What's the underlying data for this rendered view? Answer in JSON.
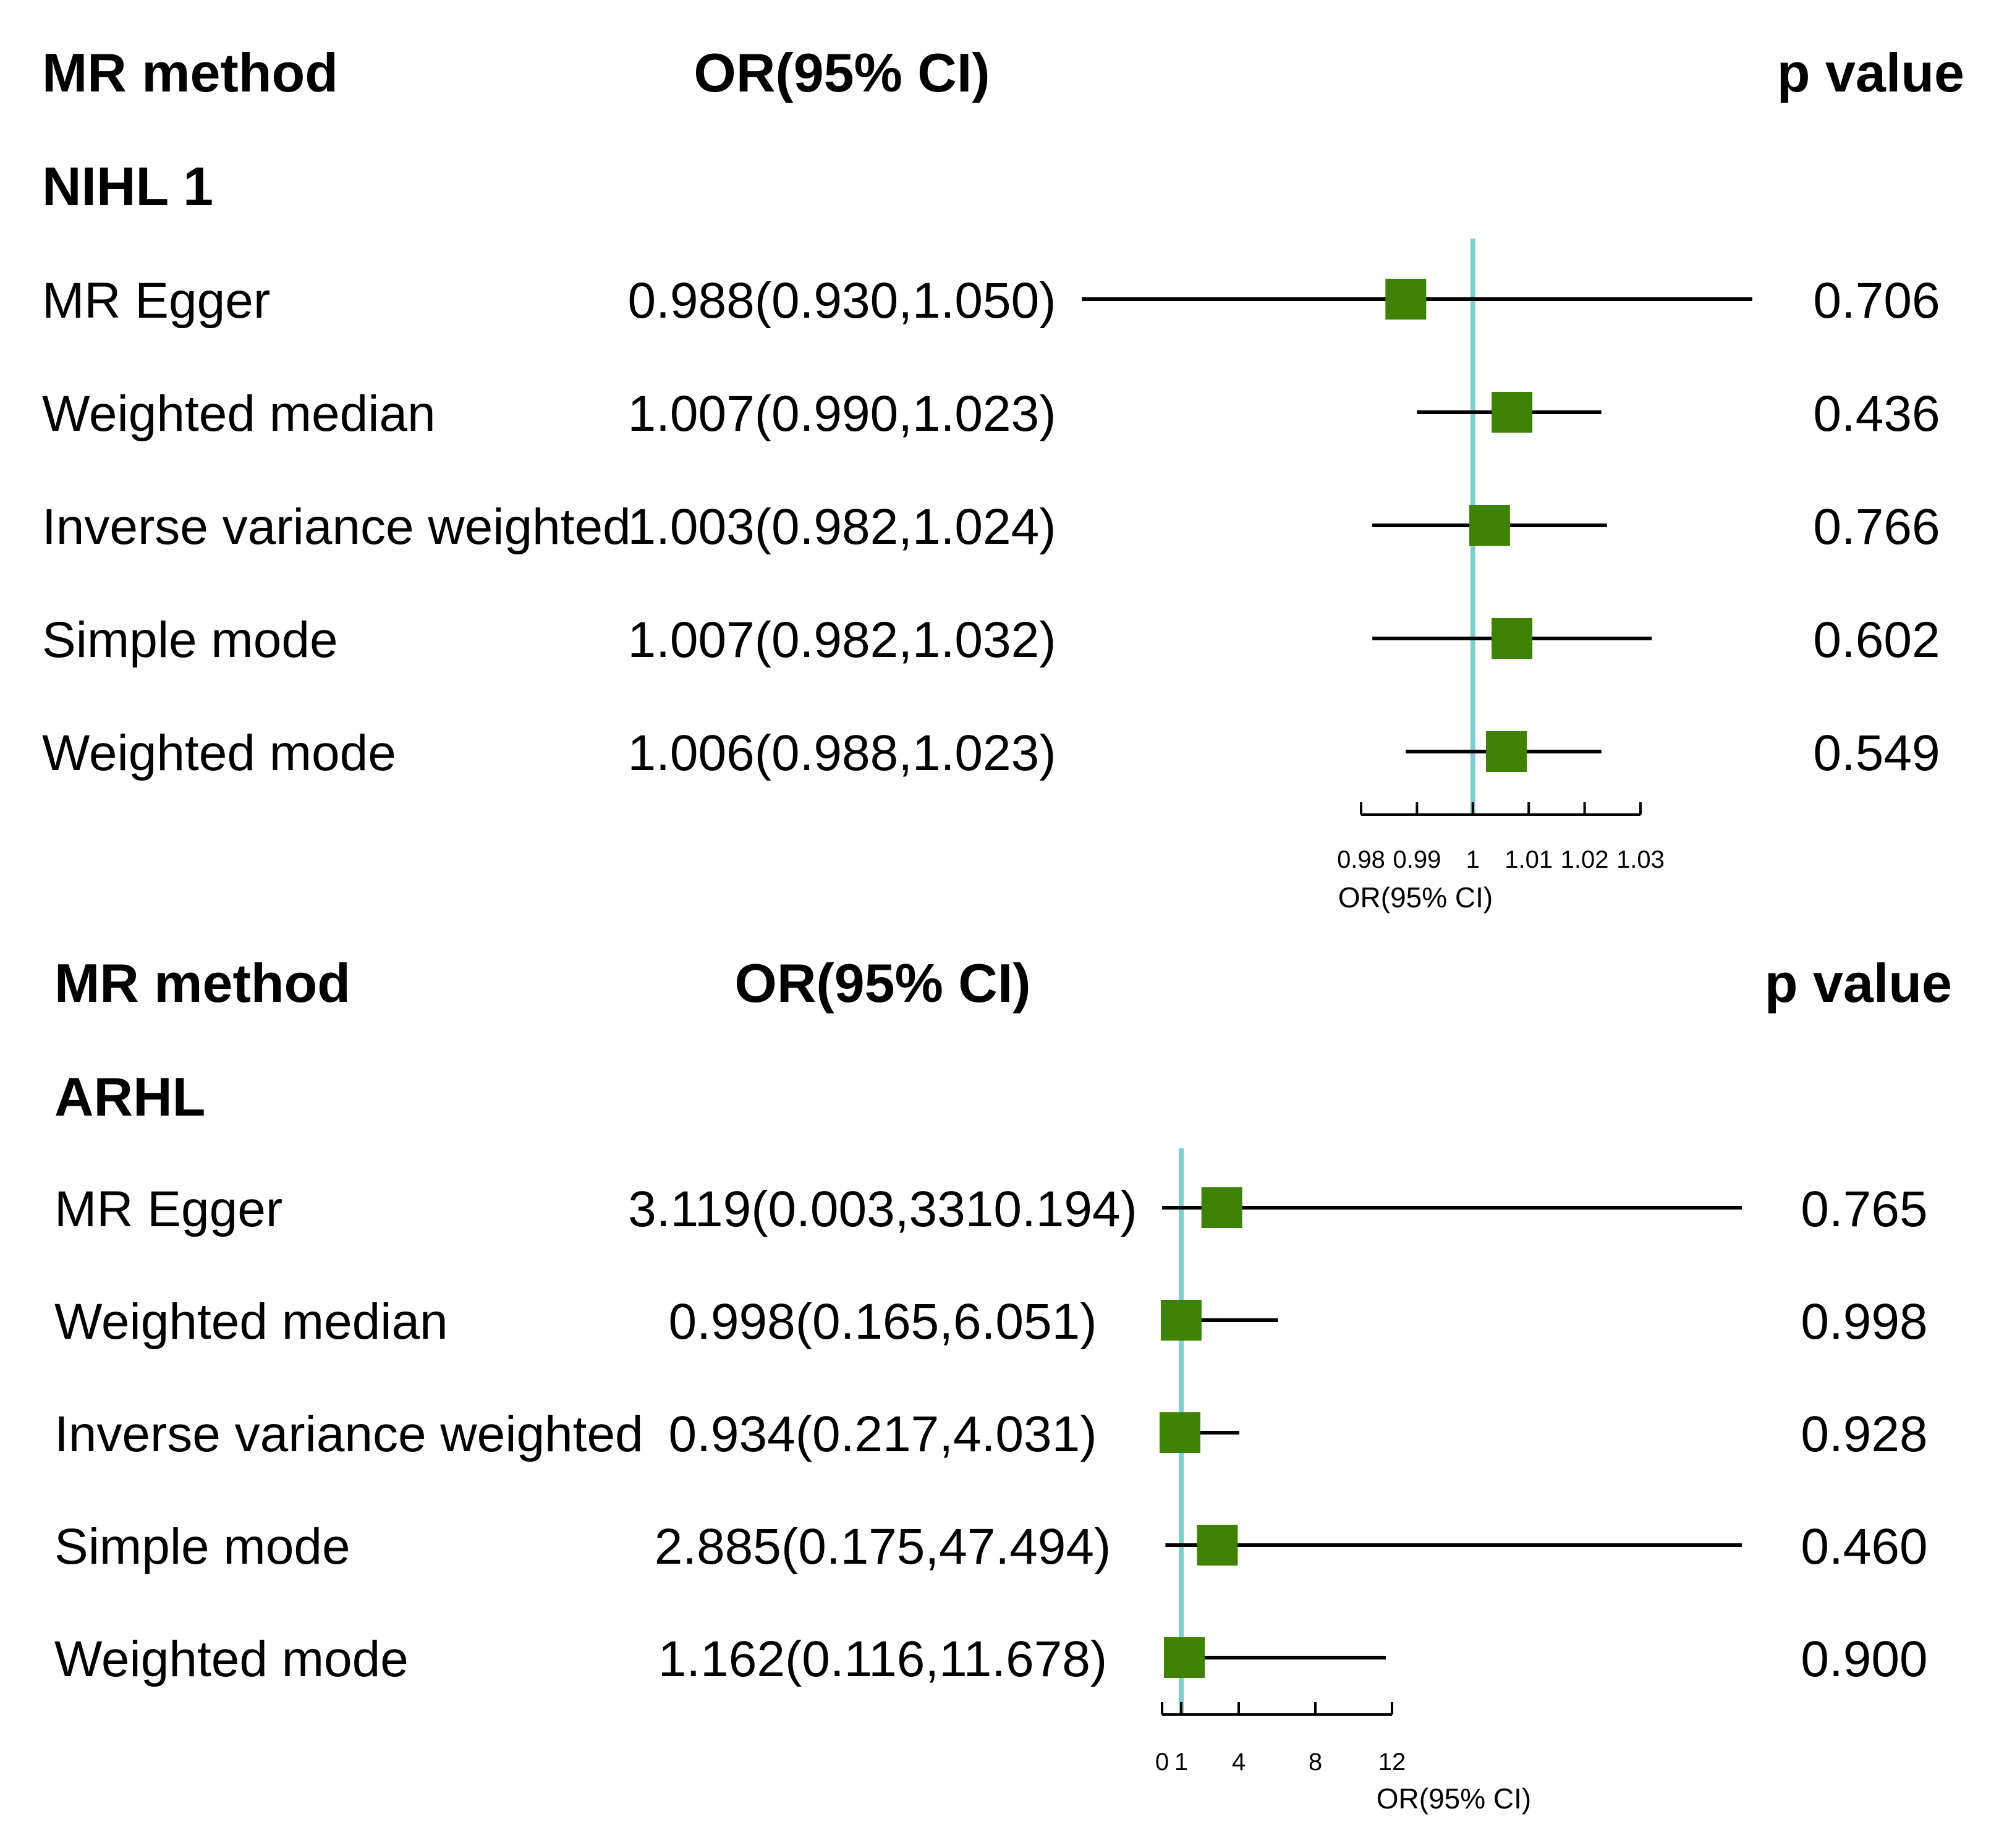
{
  "colors": {
    "box": "#3f8100",
    "ref_line": "#7fcfcf",
    "line": "#000000"
  },
  "chart_data": [
    {
      "type": "forest",
      "header": {
        "method": "MR method",
        "or": "OR(95% CI)",
        "p": "p value"
      },
      "group": "NIHL 1",
      "xlabel": "OR(95% CI)",
      "ref_value": 1,
      "xlim": [
        0.98,
        1.03
      ],
      "ticks": [
        0.98,
        0.99,
        1,
        1.01,
        1.02,
        1.03
      ],
      "tick_labels": [
        "0.98",
        "0.99",
        "1",
        "1.01",
        "1.02",
        "1.03"
      ],
      "rows": [
        {
          "method": "MR Egger",
          "or_text": "0.988(0.930,1.050)",
          "p": "0.706",
          "or": 0.988,
          "lo": 0.93,
          "hi": 1.05
        },
        {
          "method": "Weighted median",
          "or_text": "1.007(0.990,1.023)",
          "p": "0.436",
          "or": 1.007,
          "lo": 0.99,
          "hi": 1.023
        },
        {
          "method": "Inverse variance weighted",
          "or_text": "1.003(0.982,1.024)",
          "p": "0.766",
          "or": 1.003,
          "lo": 0.982,
          "hi": 1.024
        },
        {
          "method": "Simple mode",
          "or_text": "1.007(0.982,1.032)",
          "p": "0.602",
          "or": 1.007,
          "lo": 0.982,
          "hi": 1.032
        },
        {
          "method": "Weighted mode",
          "or_text": "1.006(0.988,1.023)",
          "p": "0.549",
          "or": 1.006,
          "lo": 0.988,
          "hi": 1.023
        }
      ]
    },
    {
      "type": "forest",
      "header": {
        "method": "MR method",
        "or": "OR(95% CI)",
        "p": "p value"
      },
      "group": "ARHL",
      "xlabel": "OR(95% CI)",
      "ref_value": 1,
      "xlim": [
        0,
        12
      ],
      "ticks": [
        0,
        1,
        4,
        8,
        12
      ],
      "tick_labels": [
        "0",
        "1",
        "4",
        "8",
        "12"
      ],
      "rows": [
        {
          "method": "MR Egger",
          "or_text": "3.119(0.003,3310.194)",
          "p": "0.765",
          "or": 3.119,
          "lo": 0.003,
          "hi": 3310.194
        },
        {
          "method": "Weighted median",
          "or_text": "0.998(0.165,6.051)",
          "p": "0.998",
          "or": 0.998,
          "lo": 0.165,
          "hi": 6.051
        },
        {
          "method": "Inverse variance weighted",
          "or_text": "0.934(0.217,4.031)",
          "p": "0.928",
          "or": 0.934,
          "lo": 0.217,
          "hi": 4.031
        },
        {
          "method": "Simple mode",
          "or_text": "2.885(0.175,47.494)",
          "p": "0.460",
          "or": 2.885,
          "lo": 0.175,
          "hi": 47.494
        },
        {
          "method": "Weighted mode",
          "or_text": "1.162(0.116,11.678)",
          "p": "0.900",
          "or": 1.162,
          "lo": 0.116,
          "hi": 11.678
        }
      ]
    }
  ]
}
